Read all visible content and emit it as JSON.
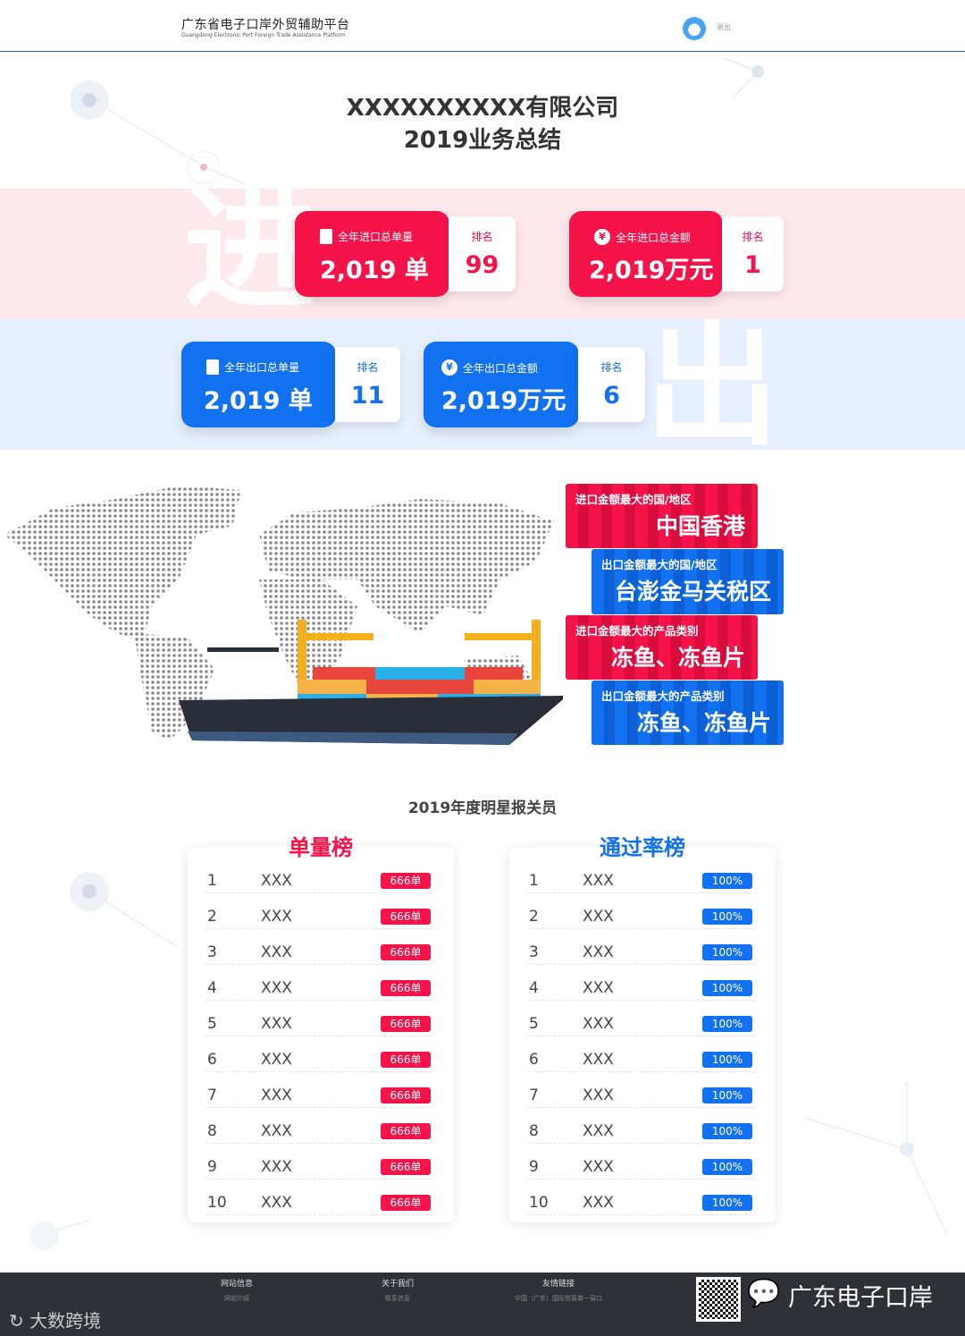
{
  "header": {
    "brand_cn": "广东省电子口岸外贸辅助平台",
    "brand_en": "Guangdong Electronic Port Foreign Trade Assistance Platform",
    "logout": "退出"
  },
  "title": {
    "company": "XXXXXXXXXX有限公司",
    "subtitle": "2019业务总结"
  },
  "bands": {
    "import_char": "进",
    "export_char": "出"
  },
  "cards": [
    {
      "label": "全年进口总单量",
      "value": "2,019 单",
      "rank_label": "排名",
      "rank": "99",
      "icon": "document-icon",
      "color": "#f5134a"
    },
    {
      "label": "全年进口总金额",
      "value": "2,019万元",
      "rank_label": "排名",
      "rank": "1",
      "icon": "yen-icon",
      "color": "#f5134a"
    },
    {
      "label": "全年出口总单量",
      "value": "2,019 单",
      "rank_label": "排名",
      "rank": "11",
      "icon": "document-icon",
      "color": "#1271f0"
    },
    {
      "label": "全年出口总金额",
      "value": "2,019万元",
      "rank_label": "排名",
      "rank": "6",
      "icon": "yen-icon",
      "color": "#1271f0"
    }
  ],
  "stats": [
    {
      "label": "进口金额最大的国/地区",
      "value": "中国香港"
    },
    {
      "label": "出口金额最大的国/地区",
      "value": "台澎金马关税区"
    },
    {
      "label": "进口金额最大的产品类别",
      "value": "冻鱼、冻鱼片"
    },
    {
      "label": "出口金额最大的产品类别",
      "value": "冻鱼、冻鱼片"
    }
  ],
  "stars": {
    "title": "2019年度明星报关员",
    "volume": {
      "heading": "单量榜",
      "rows": [
        [
          "1",
          "XXX",
          "666单"
        ],
        [
          "2",
          "XXX",
          "666单"
        ],
        [
          "3",
          "XXX",
          "666单"
        ],
        [
          "4",
          "XXX",
          "666单"
        ],
        [
          "5",
          "XXX",
          "666单"
        ],
        [
          "6",
          "XXX",
          "666单"
        ],
        [
          "7",
          "XXX",
          "666单"
        ],
        [
          "8",
          "XXX",
          "666单"
        ],
        [
          "9",
          "XXX",
          "666单"
        ],
        [
          "10",
          "XXX",
          "666单"
        ]
      ]
    },
    "pass": {
      "heading": "通过率榜",
      "rows": [
        [
          "1",
          "XXX",
          "100%"
        ],
        [
          "2",
          "XXX",
          "100%"
        ],
        [
          "3",
          "XXX",
          "100%"
        ],
        [
          "4",
          "XXX",
          "100%"
        ],
        [
          "5",
          "XXX",
          "100%"
        ],
        [
          "6",
          "XXX",
          "100%"
        ],
        [
          "7",
          "XXX",
          "100%"
        ],
        [
          "8",
          "XXX",
          "100%"
        ],
        [
          "9",
          "XXX",
          "100%"
        ],
        [
          "10",
          "XXX",
          "100%"
        ]
      ]
    }
  },
  "footer": {
    "cols": [
      {
        "head": "网站信息",
        "link": "网站介绍"
      },
      {
        "head": "关于我们",
        "link": "联系信息"
      },
      {
        "head": "友情链接",
        "link": "中国（广东）国际贸易单一窗口"
      }
    ],
    "wechat": "广东电子口岸",
    "watermark": "大数跨境"
  },
  "colors": {
    "red": "#f5134a",
    "blue": "#1271f0",
    "footer": "#2f3136"
  }
}
